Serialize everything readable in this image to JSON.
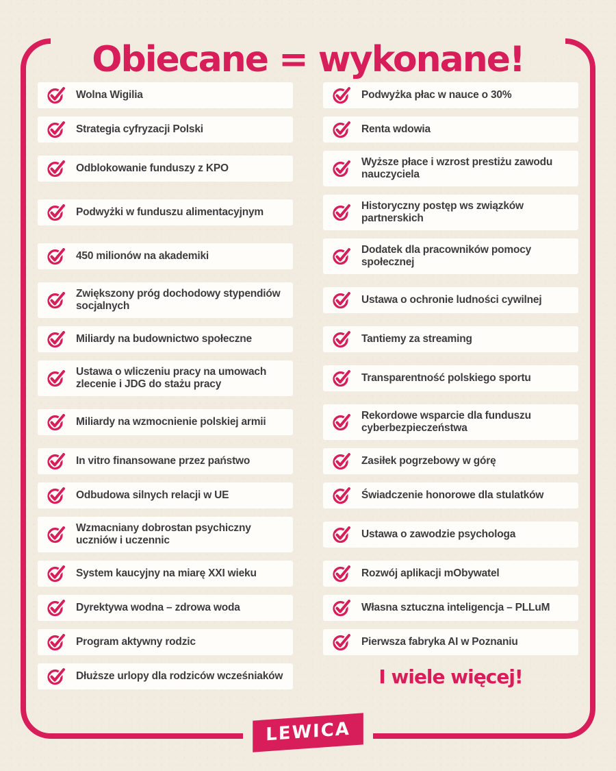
{
  "title": "Obiecane = wykonane!",
  "colors": {
    "accent": "#d81e5a",
    "background": "#f1ebe0",
    "card": "#fffdf9",
    "text": "#3e3c3e"
  },
  "icon": {
    "name": "check-circle-icon"
  },
  "checklist": {
    "left": [
      {
        "lines": [
          "Wolna Wigilia"
        ]
      },
      {
        "lines": [
          "Strategia cyfryzacji Polski"
        ]
      },
      {
        "lines": [
          "Odblokowanie funduszy z KPO"
        ]
      },
      {
        "lines": [
          "Podwyżki w funduszu alimentacyjnym"
        ]
      },
      {
        "lines": [
          "450 milionów na akademiki"
        ]
      },
      {
        "lines": [
          "Zwiększony próg dochodowy stypendiów",
          "socjalnych"
        ]
      },
      {
        "lines": [
          "Miliardy na budownictwo społeczne"
        ]
      },
      {
        "lines": [
          "Ustawa o wliczeniu pracy na umowach",
          "zlecenie i JDG do stażu pracy"
        ]
      },
      {
        "lines": [
          "Miliardy na wzmocnienie polskiej armii"
        ]
      },
      {
        "lines": [
          "In vitro finansowane przez państwo"
        ]
      },
      {
        "lines": [
          "Odbudowa silnych relacji w UE"
        ]
      },
      {
        "lines": [
          "Wzmacniany dobrostan psychiczny",
          "uczniów i uczennic"
        ]
      },
      {
        "lines": [
          "System kaucyjny na miarę XXI wieku"
        ]
      },
      {
        "lines": [
          "Dyrektywa wodna – zdrowa woda"
        ]
      },
      {
        "lines": [
          "Program aktywny rodzic"
        ]
      },
      {
        "lines": [
          "Dłuższe urlopy dla rodziców wcześniaków"
        ]
      }
    ],
    "right": [
      {
        "lines": [
          "Podwyżka płac w nauce o 30%"
        ]
      },
      {
        "lines": [
          "Renta wdowia"
        ]
      },
      {
        "lines": [
          "Wyższe płace i wzrost prestiżu zawodu",
          "nauczyciela"
        ]
      },
      {
        "lines": [
          "Historyczny postęp ws związków",
          "partnerskich"
        ]
      },
      {
        "lines": [
          "Dodatek dla pracowników pomocy",
          "społecznej"
        ]
      },
      {
        "lines": [
          "Ustawa o ochronie ludności cywilnej"
        ]
      },
      {
        "lines": [
          "Tantiemy za streaming"
        ]
      },
      {
        "lines": [
          "Transparentność polskiego sportu"
        ]
      },
      {
        "lines": [
          "Rekordowe wsparcie dla funduszu",
          "cyberbezpieczeństwa"
        ]
      },
      {
        "lines": [
          "Zasiłek pogrzebowy w górę"
        ]
      },
      {
        "lines": [
          "Świadczenie honorowe dla stulatków"
        ]
      },
      {
        "lines": [
          "Ustawa o zawodzie psychologa"
        ]
      },
      {
        "lines": [
          "Rozwój aplikacji mObywatel"
        ]
      },
      {
        "lines": [
          "Własna sztuczna inteligencja – PLLuM"
        ]
      },
      {
        "lines": [
          "Pierwsza fabryka AI w Poznaniu"
        ]
      }
    ]
  },
  "footer": {
    "more_text": "I wiele więcej!",
    "logo_text": "LEWICA"
  }
}
